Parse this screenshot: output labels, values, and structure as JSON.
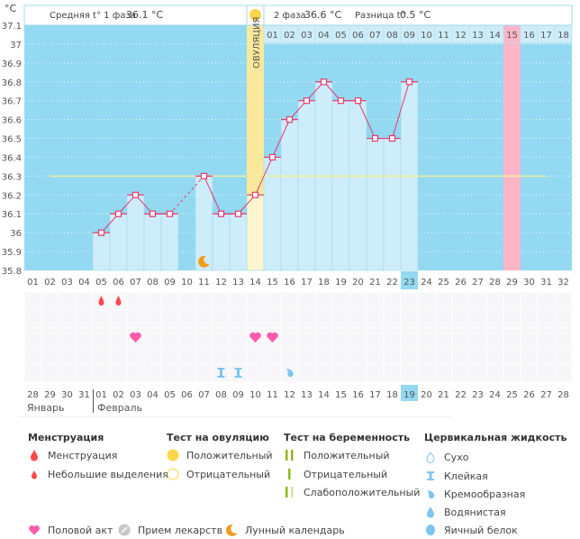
{
  "header": {
    "unit": "°C",
    "phase1_label": "Средняя t° 1 фаза",
    "phase1_value": "36.1 °C",
    "phase2_label": "2 фаза",
    "phase2_value": "36.6 °C",
    "diff_label": "Разница t°",
    "diff_value": "0.5 °C",
    "ovulation_label": "ОВУЛЯЦИЯ"
  },
  "colors": {
    "plot_bg": "#93d9f2",
    "bar": "#cdedfb",
    "line": "#e8386a",
    "coverline": "#f5ee9a",
    "ovulation": "#fbe99b",
    "ovulation_low": "#fdf5cf",
    "period_marker": "#ffb5c8",
    "highlight_day": "#93d9f2",
    "weekend": "#e8386a",
    "heart": "#ff5cad",
    "drop": "#ff4a4a",
    "moon": "#f59a1b",
    "fluid": "#7cc6ee",
    "test_green": "#8cba16"
  },
  "chart_data": {
    "type": "bar",
    "title": "",
    "xlabel": "",
    "ylabel": "°C",
    "ylim": [
      35.8,
      37.1
    ],
    "yticks": [
      "35.8",
      "35.9",
      "36",
      "36.1",
      "36.2",
      "36.3",
      "36.4",
      "36.5",
      "36.6",
      "36.7",
      "36.8",
      "36.9",
      "37",
      "37.1"
    ],
    "cycle_days": [
      "01",
      "02",
      "03",
      "04",
      "05",
      "06",
      "07",
      "08",
      "09",
      "10",
      "11",
      "12",
      "13",
      "14",
      "15",
      "16",
      "17",
      "18",
      "19",
      "20",
      "21",
      "22",
      "23",
      "24",
      "25",
      "26",
      "27",
      "28",
      "29",
      "30",
      "31",
      "32"
    ],
    "top_days": [
      "01",
      "02",
      "03",
      "04",
      "05",
      "06",
      "07",
      "08",
      "09",
      "10",
      "11",
      "12",
      "13",
      "14",
      "15",
      "16",
      "17",
      "18"
    ],
    "calendar_dates": [
      "28",
      "29",
      "30",
      "31",
      "01",
      "02",
      "03",
      "04",
      "05",
      "06",
      "07",
      "08",
      "09",
      "10",
      "11",
      "12",
      "13",
      "14",
      "15",
      "16",
      "17",
      "18",
      "19",
      "20",
      "21",
      "22",
      "23",
      "24",
      "25",
      "26",
      "27",
      "28"
    ],
    "weekend_dates_idx": [
      5,
      6,
      12,
      13,
      19,
      20,
      26,
      27
    ],
    "months": [
      "Январь",
      "Февраль"
    ],
    "temperatures": [
      null,
      null,
      null,
      null,
      36.0,
      36.1,
      36.2,
      36.1,
      36.1,
      null,
      36.3,
      36.1,
      36.1,
      36.2,
      36.4,
      36.6,
      36.7,
      36.8,
      36.7,
      36.7,
      36.5,
      36.5,
      36.8,
      null,
      null,
      null,
      null,
      null,
      null,
      null,
      null,
      null
    ],
    "dashed_segments": [
      [
        9,
        11
      ]
    ],
    "coverline": 36.3,
    "coverline_from_day": 2,
    "coverline_to_day": 31,
    "ovulation_day": 14,
    "expected_period_day": 29,
    "today_cycle_day": 23,
    "today_date": "19",
    "markers": {
      "menstruation_light": [
        5,
        6
      ],
      "intercourse": [
        7,
        14,
        15
      ],
      "fluid_sticky": [
        12,
        13
      ],
      "fluid_creamy": [
        16
      ],
      "moon": [
        11
      ]
    }
  },
  "legend": {
    "menstruation": {
      "title": "Менструация",
      "items": [
        "Менструация",
        "Небольшие выделения"
      ]
    },
    "ovulation_test": {
      "title": "Тест на овуляцию",
      "items": [
        "Положительный",
        "Отрицательный"
      ]
    },
    "pregnancy_test": {
      "title": "Тест на беременность",
      "items": [
        "Положительный",
        "Отрицательный",
        "Слабоположительный"
      ]
    },
    "cervical_fluid": {
      "title": "Цервикальная жидкость",
      "items": [
        "Сухо",
        "Клейкая",
        "Кремообразная",
        "Водянистая",
        "Яичный белок"
      ]
    },
    "bottom": [
      "Половой акт",
      "Прием лекарств",
      "Лунный календарь"
    ]
  }
}
